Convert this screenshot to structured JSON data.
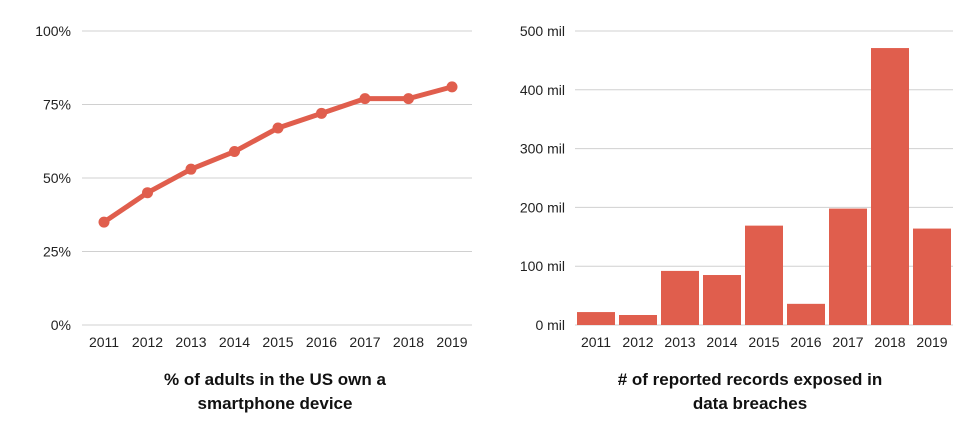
{
  "colors": {
    "accent": "#e05e4d",
    "grid": "#d0d0d0",
    "text": "#222222"
  },
  "chart_data": [
    {
      "type": "line",
      "title_lines": [
        "% of adults in the US own a",
        "smartphone device"
      ],
      "categories": [
        "2011",
        "2012",
        "2013",
        "2014",
        "2015",
        "2016",
        "2017",
        "2018",
        "2019"
      ],
      "series": [
        {
          "values": [
            35,
            45,
            53,
            59,
            67,
            72,
            77,
            77,
            81
          ]
        }
      ],
      "y_ticks": [
        0,
        25,
        50,
        75,
        100
      ],
      "y_tick_labels": [
        "0%",
        "25%",
        "50%",
        "75%",
        "100%"
      ],
      "ylim": [
        0,
        100
      ],
      "grid": true,
      "xlabel": "",
      "ylabel": ""
    },
    {
      "type": "bar",
      "title_lines": [
        "# of reported records exposed in",
        "data breaches"
      ],
      "categories": [
        "2011",
        "2012",
        "2013",
        "2014",
        "2015",
        "2016",
        "2017",
        "2018",
        "2019"
      ],
      "series": [
        {
          "values": [
            22,
            17,
            92,
            85,
            169,
            36,
            198,
            471,
            164
          ]
        }
      ],
      "y_ticks": [
        0,
        100,
        200,
        300,
        400,
        500
      ],
      "y_tick_labels": [
        "0 mil",
        "100 mil",
        "200 mil",
        "300 mil",
        "400 mil",
        "500 mil"
      ],
      "ylim": [
        0,
        500
      ],
      "grid": true,
      "xlabel": "",
      "ylabel": ""
    }
  ]
}
